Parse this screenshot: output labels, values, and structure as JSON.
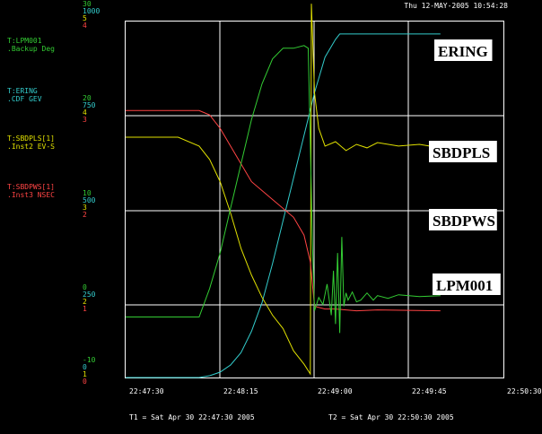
{
  "header": {
    "timestamp": "Thu 12-MAY-2005 10:54:28"
  },
  "chart_data": {
    "type": "line",
    "x_ticks": [
      "22:47:30",
      "22:48:15",
      "22:49:00",
      "22:49:45",
      "22:50:30"
    ],
    "t1_label": "T1 = Sat Apr 30 22:47:30 2005",
    "t2_label": "T2 = Sat Apr 30 22:50:30 2005",
    "grid": true,
    "axes": [
      {
        "color": "#33cc33",
        "ticks": [
          "30",
          "20",
          "10",
          "0",
          "-10"
        ],
        "ylim": [
          -10,
          30
        ]
      },
      {
        "color": "#33cccc",
        "ticks": [
          "1000",
          "750",
          "500",
          "250",
          "0"
        ],
        "ylim": [
          0,
          1000
        ]
      },
      {
        "color": "#e0e000",
        "ticks": [
          "5",
          "4",
          "3",
          "2",
          "1"
        ],
        "ylim": [
          1,
          5
        ]
      },
      {
        "color": "#ff4444",
        "ticks": [
          "4",
          "3",
          "2",
          "1",
          "0"
        ],
        "ylim": [
          0,
          4
        ]
      }
    ],
    "series_legend": [
      {
        "name": "T:LPM001",
        "sub": ".Backup Deg",
        "color": "#33cc33"
      },
      {
        "name": "T:ERING",
        "sub": ".CDF   GEV",
        "color": "#33cccc"
      },
      {
        "name": "T:SBDPLS[1]",
        "sub": ".Inst2  EV-S",
        "color": "#e0e000"
      },
      {
        "name": "T:SBDPWS[1]",
        "sub": ".Inst3  NSEC",
        "color": "#ff4444"
      }
    ],
    "series": [
      {
        "name": "ERING",
        "color": "#33cccc",
        "axis": 1,
        "points": [
          [
            0,
            0
          ],
          [
            35,
            0
          ],
          [
            40,
            5
          ],
          [
            45,
            15
          ],
          [
            50,
            35
          ],
          [
            55,
            70
          ],
          [
            60,
            130
          ],
          [
            65,
            210
          ],
          [
            70,
            320
          ],
          [
            75,
            440
          ],
          [
            80,
            560
          ],
          [
            85,
            680
          ],
          [
            90,
            800
          ],
          [
            95,
            900
          ],
          [
            100,
            950
          ],
          [
            102,
            965
          ],
          [
            110,
            965
          ],
          [
            120,
            965
          ],
          [
            130,
            965
          ],
          [
            140,
            965
          ],
          [
            150,
            965
          ]
        ]
      },
      {
        "name": "SBDPLS",
        "color": "#e0e000",
        "axis": 2,
        "points": [
          [
            0,
            3.7
          ],
          [
            25,
            3.7
          ],
          [
            35,
            3.6
          ],
          [
            40,
            3.45
          ],
          [
            45,
            3.2
          ],
          [
            50,
            2.85
          ],
          [
            55,
            2.45
          ],
          [
            60,
            2.15
          ],
          [
            65,
            1.9
          ],
          [
            70,
            1.7
          ],
          [
            75,
            1.55
          ],
          [
            80,
            1.3
          ],
          [
            85,
            1.15
          ],
          [
            88,
            1.04
          ],
          [
            88.5,
            5.2
          ],
          [
            90,
            4.2
          ],
          [
            92,
            3.8
          ],
          [
            95,
            3.6
          ],
          [
            100,
            3.65
          ],
          [
            105,
            3.55
          ],
          [
            110,
            3.62
          ],
          [
            115,
            3.58
          ],
          [
            120,
            3.64
          ],
          [
            130,
            3.6
          ],
          [
            140,
            3.62
          ],
          [
            150,
            3.58
          ]
        ]
      },
      {
        "name": "SBDPWS",
        "color": "#ff4444",
        "axis": 3,
        "points": [
          [
            0,
            3.0
          ],
          [
            35,
            3.0
          ],
          [
            40,
            2.95
          ],
          [
            45,
            2.8
          ],
          [
            50,
            2.6
          ],
          [
            55,
            2.4
          ],
          [
            60,
            2.2
          ],
          [
            70,
            2.0
          ],
          [
            80,
            1.8
          ],
          [
            85,
            1.6
          ],
          [
            88,
            1.3
          ],
          [
            90,
            0.8
          ],
          [
            95,
            0.77
          ],
          [
            100,
            0.77
          ],
          [
            110,
            0.75
          ],
          [
            120,
            0.76
          ],
          [
            150,
            0.75
          ]
        ]
      },
      {
        "name": "LPM001",
        "color": "#33cc33",
        "axis": 0,
        "points": [
          [
            0,
            -3.2
          ],
          [
            35,
            -3.2
          ],
          [
            40,
            0
          ],
          [
            45,
            4
          ],
          [
            50,
            9
          ],
          [
            55,
            14
          ],
          [
            60,
            19
          ],
          [
            65,
            23
          ],
          [
            70,
            25.8
          ],
          [
            75,
            27
          ],
          [
            80,
            27
          ],
          [
            85,
            27.3
          ],
          [
            87,
            27
          ],
          [
            89,
            5
          ],
          [
            90,
            -2.5
          ],
          [
            92,
            -1
          ],
          [
            94,
            -1.8
          ],
          [
            96,
            0.5
          ],
          [
            98,
            -3
          ],
          [
            99,
            2
          ],
          [
            100,
            -4
          ],
          [
            101,
            4
          ],
          [
            102,
            -5
          ],
          [
            103,
            5.8
          ],
          [
            104,
            -2
          ],
          [
            105,
            -0.5
          ],
          [
            106,
            -1.3
          ],
          [
            108,
            -0.4
          ],
          [
            110,
            -1.5
          ],
          [
            112,
            -1.3
          ],
          [
            115,
            -0.5
          ],
          [
            118,
            -1.3
          ],
          [
            120,
            -0.8
          ],
          [
            125,
            -1.1
          ],
          [
            130,
            -0.7
          ],
          [
            140,
            -0.9
          ],
          [
            150,
            -0.8
          ]
        ]
      }
    ],
    "labels": [
      "ERING",
      "SBDPLS",
      "SBDPWS",
      "LPM001"
    ]
  }
}
